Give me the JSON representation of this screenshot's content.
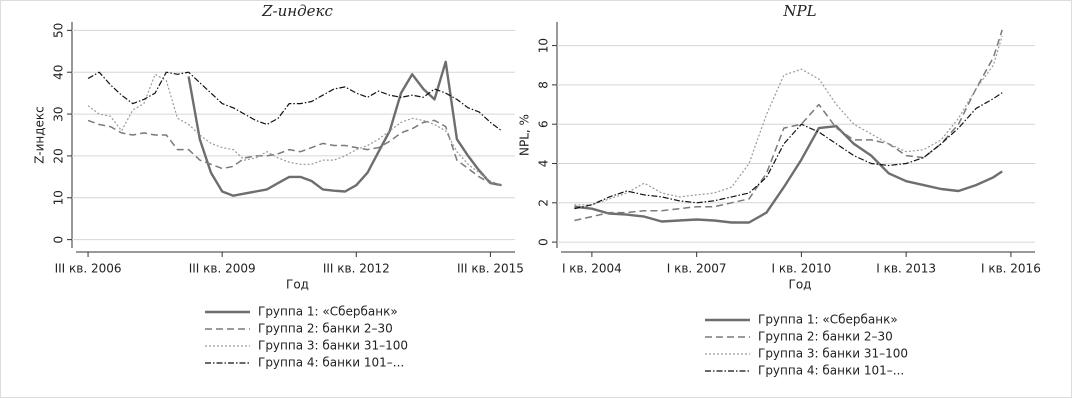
{
  "chart_data": [
    {
      "type": "line",
      "title": "Z-индекс",
      "xlabel": "Год",
      "ylabel": "Z-индекс",
      "x": [
        2006.5,
        2006.75,
        2007,
        2007.25,
        2007.5,
        2007.75,
        2008,
        2008.25,
        2008.5,
        2008.75,
        2009,
        2009.25,
        2009.5,
        2009.75,
        2010,
        2010.25,
        2010.5,
        2010.75,
        2011,
        2011.25,
        2011.5,
        2011.75,
        2012,
        2012.25,
        2012.5,
        2012.75,
        2013,
        2013.25,
        2013.5,
        2013.75,
        2014,
        2014.25,
        2014.5,
        2014.75,
        2015,
        2015.25,
        2015.5,
        2015.75
      ],
      "xlim": [
        2006.32,
        2016.05
      ],
      "xticks": [
        {
          "value": 2006.5,
          "label": "III кв. 2006"
        },
        {
          "value": 2009.5,
          "label": "III кв. 2009"
        },
        {
          "value": 2012.5,
          "label": "III кв. 2012"
        },
        {
          "value": 2015.5,
          "label": "III кв. 2015"
        }
      ],
      "ylim": [
        -2,
        52
      ],
      "yticks": [
        0,
        10,
        20,
        30,
        40,
        50
      ],
      "grid": true,
      "legend": "bottom",
      "series": [
        {
          "name": "Группа 1: «Сбербанк»",
          "color": "#6e6e6e",
          "dash": "solid",
          "values": [
            null,
            null,
            null,
            null,
            null,
            null,
            null,
            null,
            null,
            39,
            24,
            16,
            11.5,
            10.5,
            11,
            11.5,
            12,
            13.5,
            15,
            15,
            14,
            12,
            11.7,
            11.5,
            13,
            16,
            21,
            26,
            35,
            39.5,
            36,
            33.5,
            42.5,
            24,
            20,
            16.5,
            13.5,
            13
          ]
        },
        {
          "name": "Группа 2: банки 2–30",
          "color": "#7a7a7a",
          "dash": "dashed",
          "values": [
            28.5,
            27.5,
            27,
            25.5,
            25,
            25.5,
            25,
            25,
            21.5,
            21.5,
            19,
            18,
            17,
            17.5,
            19.5,
            20,
            20,
            20.5,
            21.5,
            21,
            22,
            23,
            22.5,
            22.5,
            22,
            21.5,
            22,
            23.5,
            25.5,
            26.5,
            28,
            28.5,
            27,
            19,
            17,
            15,
            13.5,
            13
          ]
        },
        {
          "name": "Группа 3: банки 31–100",
          "color": "#9a9a9a",
          "dash": "dotted",
          "values": [
            32,
            30,
            29.5,
            26,
            31,
            32.5,
            39.5,
            38,
            29,
            27.5,
            25,
            23,
            22,
            21.5,
            19,
            19.5,
            21,
            19.5,
            18.5,
            18,
            18,
            19,
            19,
            20,
            21.5,
            22.5,
            24,
            26,
            28,
            29,
            28.5,
            27.5,
            26,
            21,
            18,
            16,
            14,
            13
          ]
        },
        {
          "name": "Группа 4: банки 101–...",
          "color": "#111111",
          "dash": "dashdot",
          "values": [
            38.5,
            40,
            37,
            34.5,
            32.5,
            33.5,
            35,
            40,
            39.5,
            40,
            37.5,
            35,
            32.5,
            31.5,
            30,
            28.5,
            27.5,
            29,
            32.5,
            32.5,
            33,
            34.5,
            36,
            36.5,
            35,
            34,
            35.5,
            34.5,
            34,
            34.5,
            34,
            36,
            35,
            33.5,
            31.5,
            30.5,
            28,
            26
          ]
        }
      ]
    },
    {
      "type": "line",
      "title": "NPL",
      "xlabel": "Год",
      "ylabel": "NPL, %",
      "x": [
        2003.5,
        2004,
        2004.5,
        2005,
        2005.5,
        2006,
        2006.5,
        2007,
        2007.5,
        2008,
        2008.5,
        2009,
        2009.5,
        2010,
        2010.5,
        2011,
        2011.5,
        2012,
        2012.5,
        2013,
        2013.5,
        2014,
        2014.5,
        2015,
        2015.5,
        2015.75
      ],
      "xlim": [
        2003.23,
        2016.69
      ],
      "xticks": [
        {
          "value": 2004,
          "label": "I кв. 2004"
        },
        {
          "value": 2007,
          "label": "I кв. 2007"
        },
        {
          "value": 2010,
          "label": "I кв. 2010"
        },
        {
          "value": 2013,
          "label": "I кв. 2013"
        },
        {
          "value": 2016,
          "label": "I кв. 2016"
        }
      ],
      "ylim": [
        -0.3,
        11.2
      ],
      "yticks": [
        0,
        2,
        4,
        6,
        8,
        10
      ],
      "grid": true,
      "legend": "bottom",
      "series": [
        {
          "name": "Группа 1: «Сбербанк»",
          "color": "#6e6e6e",
          "dash": "solid",
          "values": [
            1.8,
            1.7,
            1.45,
            1.4,
            1.3,
            1.05,
            1.1,
            1.15,
            1.1,
            1.0,
            1.0,
            1.5,
            2.8,
            4.2,
            5.8,
            5.9,
            5.0,
            4.4,
            3.5,
            3.1,
            2.9,
            2.7,
            2.6,
            2.9,
            3.3,
            3.6
          ]
        },
        {
          "name": "Группа 2: банки 2–30",
          "color": "#7a7a7a",
          "dash": "dashed",
          "values": [
            1.1,
            1.3,
            1.5,
            1.5,
            1.6,
            1.6,
            1.7,
            1.8,
            1.8,
            2.0,
            2.2,
            3.5,
            5.8,
            6.0,
            7.0,
            5.8,
            5.2,
            5.2,
            5.0,
            4.4,
            4.3,
            5.0,
            6.0,
            7.8,
            9.4,
            10.8
          ]
        },
        {
          "name": "Группа 3: банки 31–100",
          "color": "#9a9a9a",
          "dash": "dotted",
          "values": [
            1.9,
            1.9,
            2.2,
            2.5,
            3.0,
            2.5,
            2.3,
            2.4,
            2.5,
            2.8,
            4.0,
            6.5,
            8.5,
            8.8,
            8.3,
            7.0,
            6.0,
            5.5,
            5.0,
            4.6,
            4.7,
            5.2,
            6.3,
            7.8,
            9.0,
            10.5
          ]
        },
        {
          "name": "Группа 4: банки 101–...",
          "color": "#111111",
          "dash": "dashdot",
          "values": [
            1.7,
            1.9,
            2.3,
            2.6,
            2.4,
            2.3,
            2.1,
            2.0,
            2.1,
            2.3,
            2.5,
            3.3,
            5.0,
            6.0,
            5.6,
            5.0,
            4.4,
            4.0,
            3.9,
            4.0,
            4.3,
            5.0,
            5.8,
            6.8,
            7.3,
            7.6
          ]
        }
      ]
    }
  ]
}
